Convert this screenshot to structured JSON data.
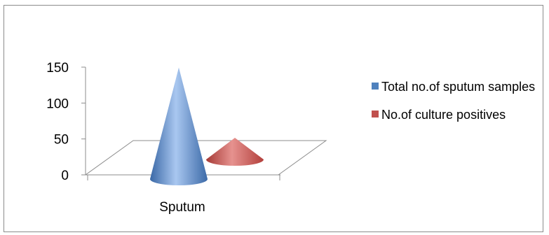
{
  "chart_data": {
    "type": "bar",
    "style": "3d-cone",
    "categories": [
      "Sputum"
    ],
    "series": [
      {
        "name": "Total no.of sputum samples",
        "values": [
          147
        ],
        "color": "#4f81bd"
      },
      {
        "name": "No.of culture positives",
        "values": [
          30
        ],
        "color": "#c0504d"
      }
    ],
    "ylim": [
      0,
      150
    ],
    "yticks": [
      "0",
      "50",
      "100",
      "150"
    ],
    "grid": false,
    "legend": "right",
    "title": "",
    "xlabel": "",
    "ylabel": ""
  }
}
